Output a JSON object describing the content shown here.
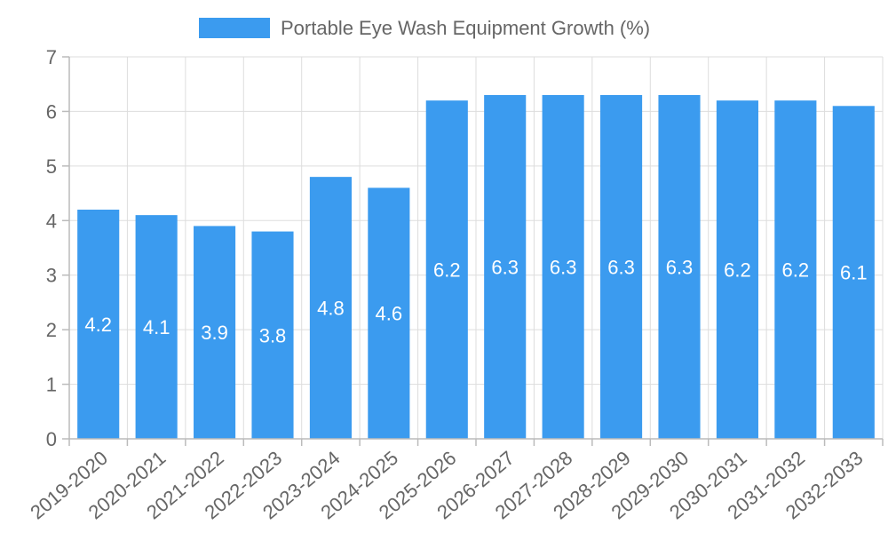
{
  "chart_data": {
    "type": "bar",
    "title": "",
    "xlabel": "",
    "ylabel": "",
    "ylim": [
      0,
      7
    ],
    "yticks": [
      0,
      1,
      2,
      3,
      4,
      5,
      6,
      7
    ],
    "grid": true,
    "legend_position": "top-center",
    "series": [
      {
        "name": "Portable Eye Wash Equipment Growth (%)",
        "color": "#3b9bef",
        "values": [
          4.2,
          4.1,
          3.9,
          3.8,
          4.8,
          4.6,
          6.2,
          6.3,
          6.3,
          6.3,
          6.3,
          6.2,
          6.2,
          6.1
        ]
      }
    ],
    "categories": [
      "2019-2020",
      "2020-2021",
      "2021-2022",
      "2022-2023",
      "2023-2024",
      "2024-2025",
      "2025-2026",
      "2026-2027",
      "2027-2028",
      "2028-2029",
      "2029-2030",
      "2030-2031",
      "2031-2032",
      "2032-2033"
    ]
  }
}
